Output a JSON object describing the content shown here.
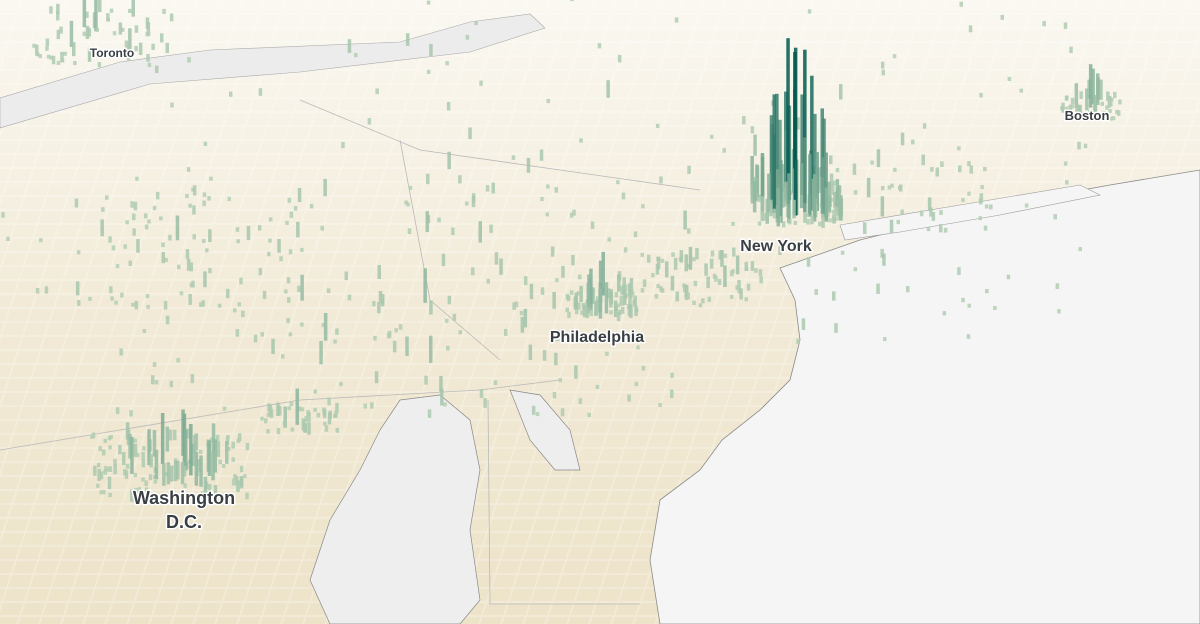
{
  "cities": [
    {
      "label": "Toronto"
    },
    {
      "label": "Boston"
    },
    {
      "label": "New York"
    },
    {
      "label": "Philadelphia"
    },
    {
      "label_lines": [
        "Washington",
        "D.C."
      ]
    }
  ]
}
